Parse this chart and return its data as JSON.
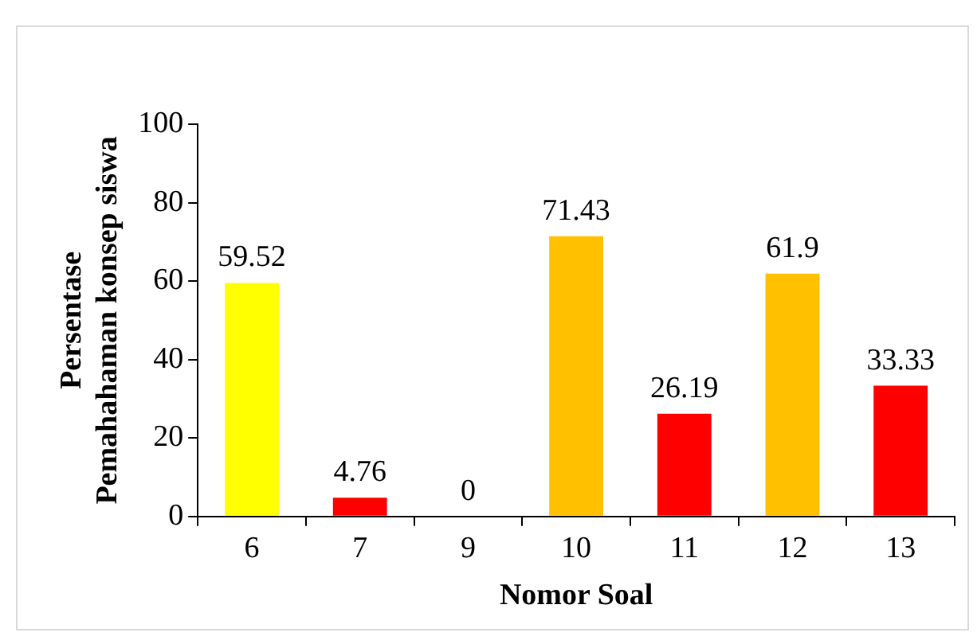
{
  "chart_data": {
    "type": "bar",
    "xlabel": "Nomor Soal",
    "ylabel": "Persentase\nPemahahaman konsep siswa",
    "categories": [
      "6",
      "7",
      "9",
      "10",
      "11",
      "12",
      "13"
    ],
    "values": [
      59.52,
      4.76,
      0,
      71.43,
      26.19,
      61.9,
      33.33
    ],
    "colors": [
      "#ffff00",
      "#ff0000",
      "#ff0000",
      "#ffc000",
      "#ff0000",
      "#ffc000",
      "#ff0000"
    ],
    "ylim": [
      0,
      100
    ],
    "yticks": [
      0,
      20,
      40,
      60,
      80,
      100
    ],
    "data_labels": true,
    "grid": false,
    "legend": false
  }
}
